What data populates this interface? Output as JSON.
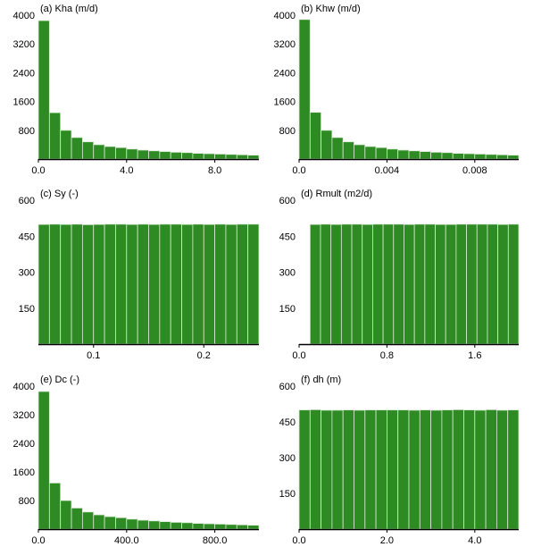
{
  "chart_data": [
    {
      "type": "bar",
      "title": "(a) Kha (m/d)",
      "xlim": [
        0,
        10
      ],
      "ylim": [
        0,
        4000
      ],
      "xticks": [
        0,
        4,
        8
      ],
      "xtick_labels": [
        "0.0",
        "4.0",
        "8.0"
      ],
      "yticks": [
        800,
        1600,
        2400,
        3200,
        4000
      ],
      "ytick_labels": [
        "800",
        "1600",
        "2400",
        "3200",
        "4000"
      ],
      "bin_edges": [
        0,
        0.5,
        1,
        1.5,
        2,
        2.5,
        3,
        3.5,
        4,
        4.5,
        5,
        5.5,
        6,
        6.5,
        7,
        7.5,
        8,
        8.5,
        9,
        9.5,
        10
      ],
      "values": [
        3850,
        1290,
        800,
        600,
        480,
        400,
        350,
        320,
        280,
        250,
        230,
        210,
        190,
        180,
        160,
        150,
        140,
        130,
        120,
        110
      ],
      "bar_color": "#2e8b24"
    },
    {
      "type": "bar",
      "title": "(b) Khw (m/d)",
      "xlim": [
        0,
        0.01
      ],
      "ylim": [
        0,
        4000
      ],
      "xticks": [
        0,
        0.004,
        0.008
      ],
      "xtick_labels": [
        "0.0",
        "0.004",
        "0.008"
      ],
      "yticks": [
        800,
        1600,
        2400,
        3200,
        4000
      ],
      "ytick_labels": [
        "800",
        "1600",
        "2400",
        "3200",
        "4000"
      ],
      "bin_edges": [
        0,
        0.0005,
        0.001,
        0.0015,
        0.002,
        0.0025,
        0.003,
        0.0035,
        0.004,
        0.0045,
        0.005,
        0.0055,
        0.006,
        0.0065,
        0.007,
        0.0075,
        0.008,
        0.0085,
        0.009,
        0.0095,
        0.01
      ],
      "values": [
        3880,
        1300,
        800,
        600,
        480,
        400,
        350,
        320,
        280,
        250,
        230,
        210,
        190,
        180,
        160,
        150,
        140,
        130,
        120,
        110
      ],
      "bar_color": "#2e8b24"
    },
    {
      "type": "bar",
      "title": "(c) Sy (-)",
      "xlim": [
        0.05,
        0.25
      ],
      "ylim": [
        0,
        600
      ],
      "xticks": [
        0.1,
        0.2
      ],
      "xtick_labels": [
        "0.1",
        "0.2"
      ],
      "yticks": [
        150,
        300,
        450,
        600
      ],
      "ytick_labels": [
        "150",
        "300",
        "450",
        "600"
      ],
      "bin_edges": [
        0.05,
        0.06,
        0.07,
        0.08,
        0.09,
        0.1,
        0.11,
        0.12,
        0.13,
        0.14,
        0.15,
        0.16,
        0.17,
        0.18,
        0.19,
        0.2,
        0.21,
        0.22,
        0.23,
        0.24,
        0.25
      ],
      "values": [
        499,
        500,
        499,
        500,
        498,
        499,
        500,
        500,
        499,
        500,
        499,
        500,
        500,
        499,
        500,
        499,
        500,
        499,
        500,
        500
      ],
      "bar_color": "#2e8b24"
    },
    {
      "type": "bar",
      "title": "(d) Rmult (m2/d)",
      "xlim": [
        0,
        2
      ],
      "ylim": [
        0,
        600
      ],
      "xticks": [
        0,
        0.8,
        1.6
      ],
      "xtick_labels": [
        "0.0",
        "0.8",
        "1.6"
      ],
      "yticks": [
        150,
        300,
        450,
        600
      ],
      "ytick_labels": [
        "150",
        "300",
        "450",
        "600"
      ],
      "bin_edges": [
        0.1,
        0.195,
        0.29,
        0.385,
        0.48,
        0.575,
        0.67,
        0.765,
        0.86,
        0.955,
        1.05,
        1.145,
        1.24,
        1.335,
        1.43,
        1.525,
        1.62,
        1.715,
        1.81,
        1.905,
        2.0
      ],
      "values": [
        499,
        500,
        499,
        500,
        500,
        499,
        500,
        500,
        500,
        499,
        500,
        500,
        499,
        499,
        500,
        500,
        500,
        500,
        499,
        500
      ],
      "bar_color": "#2e8b24"
    },
    {
      "type": "bar",
      "title": "(e) Dc (-)",
      "xlim": [
        0,
        1000
      ],
      "ylim": [
        0,
        4000
      ],
      "xticks": [
        0,
        400,
        800
      ],
      "xtick_labels": [
        "0.0",
        "400.0",
        "800.0"
      ],
      "yticks": [
        800,
        1600,
        2400,
        3200,
        4000
      ],
      "ytick_labels": [
        "800",
        "1600",
        "2400",
        "3200",
        "4000"
      ],
      "bin_edges": [
        0,
        50,
        100,
        150,
        200,
        250,
        300,
        350,
        400,
        450,
        500,
        550,
        600,
        650,
        700,
        750,
        800,
        850,
        900,
        950,
        1000
      ],
      "values": [
        3850,
        1290,
        800,
        590,
        480,
        400,
        350,
        320,
        280,
        250,
        230,
        210,
        190,
        180,
        160,
        150,
        140,
        130,
        120,
        110
      ],
      "bar_color": "#2e8b24"
    },
    {
      "type": "bar",
      "title": "(f) dh (m)",
      "xlim": [
        0,
        5
      ],
      "ylim": [
        0,
        600
      ],
      "xticks": [
        0,
        2,
        4
      ],
      "xtick_labels": [
        "0.0",
        "2.0",
        "4.0"
      ],
      "yticks": [
        150,
        300,
        450,
        600
      ],
      "ytick_labels": [
        "150",
        "300",
        "450",
        "600"
      ],
      "bin_edges": [
        0,
        0.25,
        0.5,
        0.75,
        1,
        1.25,
        1.5,
        1.75,
        2,
        2.25,
        2.5,
        2.75,
        3,
        3.25,
        3.5,
        3.75,
        4,
        4.25,
        4.5,
        4.75,
        5
      ],
      "values": [
        500,
        501,
        499,
        499,
        500,
        499,
        500,
        500,
        500,
        500,
        499,
        500,
        499,
        500,
        501,
        500,
        499,
        501,
        499,
        500
      ],
      "bar_color": "#2e8b24"
    }
  ]
}
